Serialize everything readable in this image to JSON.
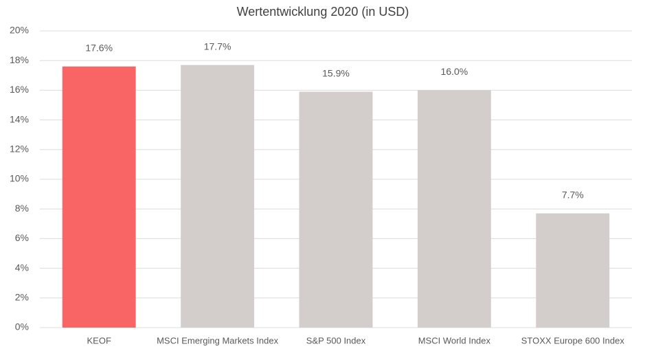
{
  "chart_data": {
    "type": "bar",
    "title": "Wertentwicklung 2020 (in USD)",
    "categories": [
      "KEOF",
      "MSCI Emerging Markets Index",
      "S&P 500 Index",
      "MSCI World Index",
      "STOXX Europe 600 Index"
    ],
    "values": [
      17.6,
      17.7,
      15.9,
      16.0,
      7.7
    ],
    "value_labels": [
      "17.6%",
      "17.7%",
      "15.9%",
      "16.0%",
      "7.7%"
    ],
    "colors": [
      "#f96464",
      "#d3cecb",
      "#d3cecb",
      "#d3cecb",
      "#d3cecb"
    ],
    "ylim": [
      0,
      20
    ],
    "yticks": [
      {
        "value": 0,
        "label": "0%"
      },
      {
        "value": 2,
        "label": "2%"
      },
      {
        "value": 4,
        "label": "4%"
      },
      {
        "value": 6,
        "label": "6%"
      },
      {
        "value": 8,
        "label": "8%"
      },
      {
        "value": 10,
        "label": "10%"
      },
      {
        "value": 12,
        "label": "12%"
      },
      {
        "value": 14,
        "label": "14%"
      },
      {
        "value": 16,
        "label": "16%"
      },
      {
        "value": 18,
        "label": "18%"
      },
      {
        "value": 20,
        "label": "20%"
      }
    ],
    "grid": true
  }
}
